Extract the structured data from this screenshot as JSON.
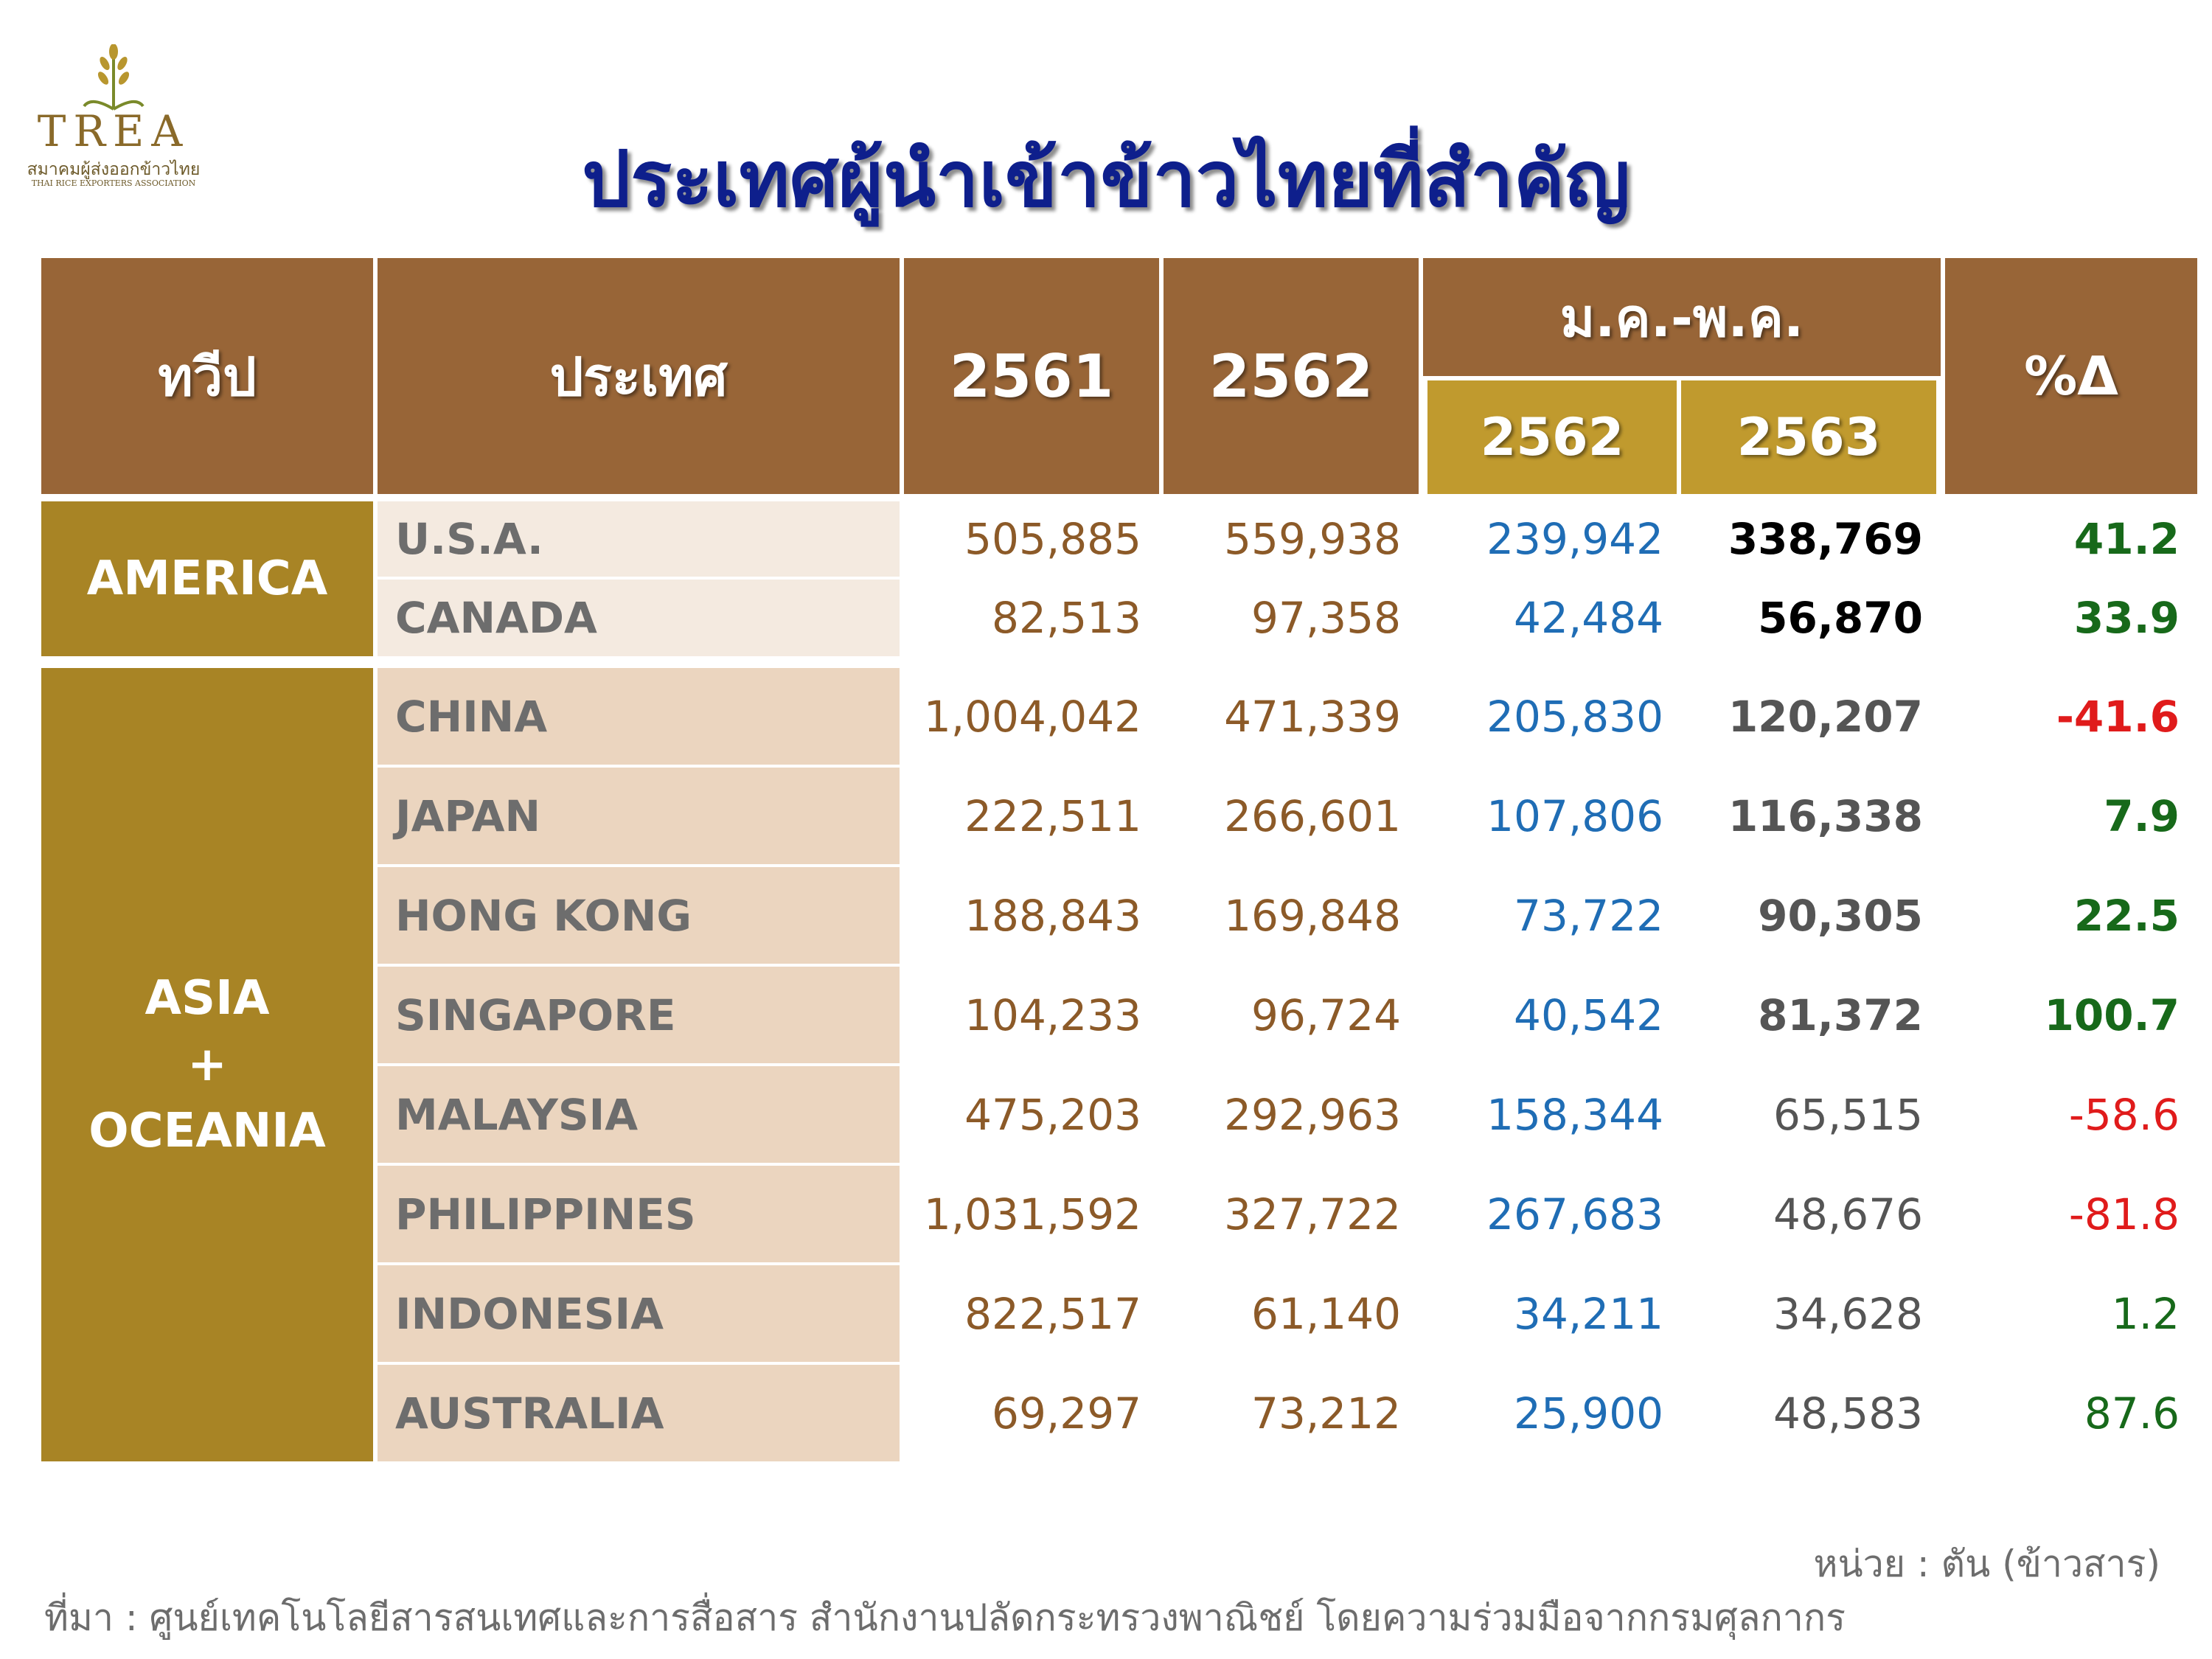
{
  "logo": {
    "name": "TREA",
    "thai": "สมาคมผู้ส่งออกข้าวไทย",
    "english": "THAI RICE EXPORTERS ASSOCIATION"
  },
  "title": "ประเทศผู้นำเข้าข้าวไทยที่สำคัญ",
  "header": {
    "region": "ทวีป",
    "country": "ประเทศ",
    "y2561": "2561",
    "y2562": "2562",
    "period": "ม.ค.-พ.ค.",
    "p2562": "2562",
    "p2563": "2563",
    "change": "%Δ"
  },
  "regions": [
    {
      "name": "AMERICA"
    },
    {
      "name": "ASIA\n+\nOCEANIA"
    }
  ],
  "rows": [
    {
      "country": "U.S.A.",
      "y2561": "505,885",
      "y2562": "559,938",
      "p2562": "239,942",
      "p2563": "338,769",
      "change": "41.2"
    },
    {
      "country": "CANADA",
      "y2561": "82,513",
      "y2562": "97,358",
      "p2562": "42,484",
      "p2563": "56,870",
      "change": "33.9"
    },
    {
      "country": "CHINA",
      "y2561": "1,004,042",
      "y2562": "471,339",
      "p2562": "205,830",
      "p2563": "120,207",
      "change": "-41.6"
    },
    {
      "country": "JAPAN",
      "y2561": "222,511",
      "y2562": "266,601",
      "p2562": "107,806",
      "p2563": "116,338",
      "change": "7.9"
    },
    {
      "country": "HONG KONG",
      "y2561": "188,843",
      "y2562": "169,848",
      "p2562": "73,722",
      "p2563": "90,305",
      "change": "22.5"
    },
    {
      "country": "SINGAPORE",
      "y2561": "104,233",
      "y2562": "96,724",
      "p2562": "40,542",
      "p2563": "81,372",
      "change": "100.7"
    },
    {
      "country": "MALAYSIA",
      "y2561": "475,203",
      "y2562": "292,963",
      "p2562": "158,344",
      "p2563": "65,515",
      "change": "-58.6"
    },
    {
      "country": "PHILIPPINES",
      "y2561": "1,031,592",
      "y2562": "327,722",
      "p2562": "267,683",
      "p2563": "48,676",
      "change": "-81.8"
    },
    {
      "country": "INDONESIA",
      "y2561": "822,517",
      "y2562": "61,140",
      "p2562": "34,211",
      "p2563": "34,628",
      "change": "1.2"
    },
    {
      "country": "AUSTRALIA",
      "y2561": "69,297",
      "y2562": "73,212",
      "p2562": "25,900",
      "p2563": "48,583",
      "change": "87.6"
    }
  ],
  "colors": {
    "header_brown": "#986537",
    "subheader_gold": "#c09a2e",
    "region_gold": "#a88425",
    "title_blue": "#0e1f8c",
    "positive_green": "#17691a",
    "negative_red": "#e01b1b",
    "period_blue": "#1f6db5"
  },
  "footer": {
    "unit": "หน่วย : ตัน (ข้าวสาร)",
    "source": "ที่มา : ศูนย์เทคโนโลยีสารสนเทศและการสื่อสาร สำนักงานปลัดกระทรวงพาณิชย์ โดยความร่วมมือจากกรมศุลกากร"
  }
}
